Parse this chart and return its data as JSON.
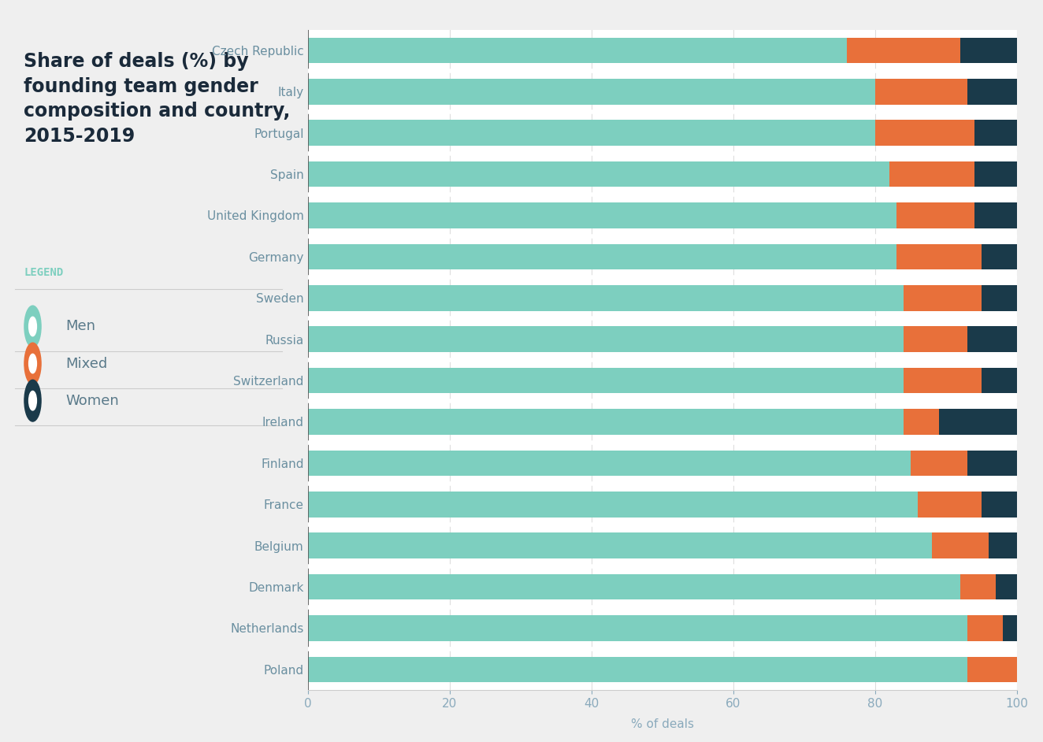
{
  "countries": [
    "Czech Republic",
    "Italy",
    "Portugal",
    "Spain",
    "United Kingdom",
    "Germany",
    "Sweden",
    "Russia",
    "Switzerland",
    "Ireland",
    "Finland",
    "France",
    "Belgium",
    "Denmark",
    "Netherlands",
    "Poland"
  ],
  "men": [
    76,
    80,
    80,
    82,
    83,
    83,
    84,
    84,
    84,
    84,
    85,
    86,
    88,
    92,
    93,
    93
  ],
  "mixed": [
    16,
    13,
    14,
    12,
    11,
    12,
    11,
    9,
    11,
    5,
    8,
    9,
    8,
    5,
    5,
    7
  ],
  "women": [
    8,
    7,
    6,
    6,
    6,
    5,
    5,
    7,
    5,
    11,
    7,
    5,
    4,
    3,
    2,
    0
  ],
  "men_color": "#7dcfbf",
  "mixed_color": "#e8703a",
  "women_color": "#1a3a4a",
  "bg_color": "#efefef",
  "plot_bg_color": "#ffffff",
  "title": "Share of deals (%) by\nfounding team gender\ncomposition and country,\n2015-2019",
  "xlabel": "% of deals",
  "legend_title": "LEGEND",
  "legend_items": [
    "Men",
    "Mixed",
    "Women"
  ],
  "xlim": [
    0,
    100
  ],
  "title_fontsize": 17,
  "label_fontsize": 11,
  "tick_fontsize": 11,
  "country_label_color": "#6a8fa0",
  "axis_label_color": "#8aaabc"
}
